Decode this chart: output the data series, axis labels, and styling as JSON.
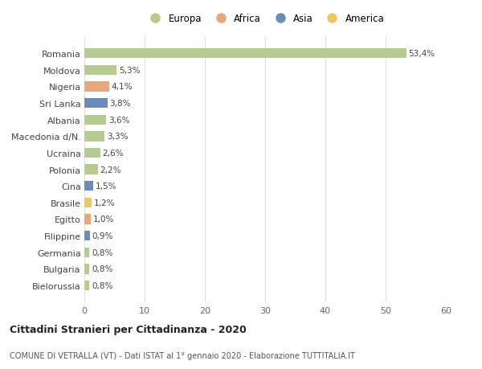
{
  "countries": [
    "Romania",
    "Moldova",
    "Nigeria",
    "Sri Lanka",
    "Albania",
    "Macedonia d/N.",
    "Ucraina",
    "Polonia",
    "Cina",
    "Brasile",
    "Egitto",
    "Filippine",
    "Germania",
    "Bulgaria",
    "Bielorussia"
  ],
  "values": [
    53.4,
    5.3,
    4.1,
    3.8,
    3.6,
    3.3,
    2.6,
    2.2,
    1.5,
    1.2,
    1.0,
    0.9,
    0.8,
    0.8,
    0.8
  ],
  "labels": [
    "53,4%",
    "5,3%",
    "4,1%",
    "3,8%",
    "3,6%",
    "3,3%",
    "2,6%",
    "2,2%",
    "1,5%",
    "1,2%",
    "1,0%",
    "0,9%",
    "0,8%",
    "0,8%",
    "0,8%"
  ],
  "continents": [
    "Europa",
    "Europa",
    "Africa",
    "Asia",
    "Europa",
    "Europa",
    "Europa",
    "Europa",
    "Asia",
    "America",
    "Africa",
    "Asia",
    "Europa",
    "Europa",
    "Europa"
  ],
  "continent_colors": {
    "Europa": "#b5cc8e",
    "Africa": "#e8a87c",
    "Asia": "#6b8cba",
    "America": "#f0c75e"
  },
  "legend_items": [
    "Europa",
    "Africa",
    "Asia",
    "America"
  ],
  "title": "Cittadini Stranieri per Cittadinanza - 2020",
  "subtitle": "COMUNE DI VETRALLA (VT) - Dati ISTAT al 1° gennaio 2020 - Elaborazione TUTTITALIA.IT",
  "xlim": [
    0,
    60
  ],
  "xticks": [
    0,
    10,
    20,
    30,
    40,
    50,
    60
  ],
  "background_color": "#ffffff",
  "grid_color": "#e0e0e0"
}
